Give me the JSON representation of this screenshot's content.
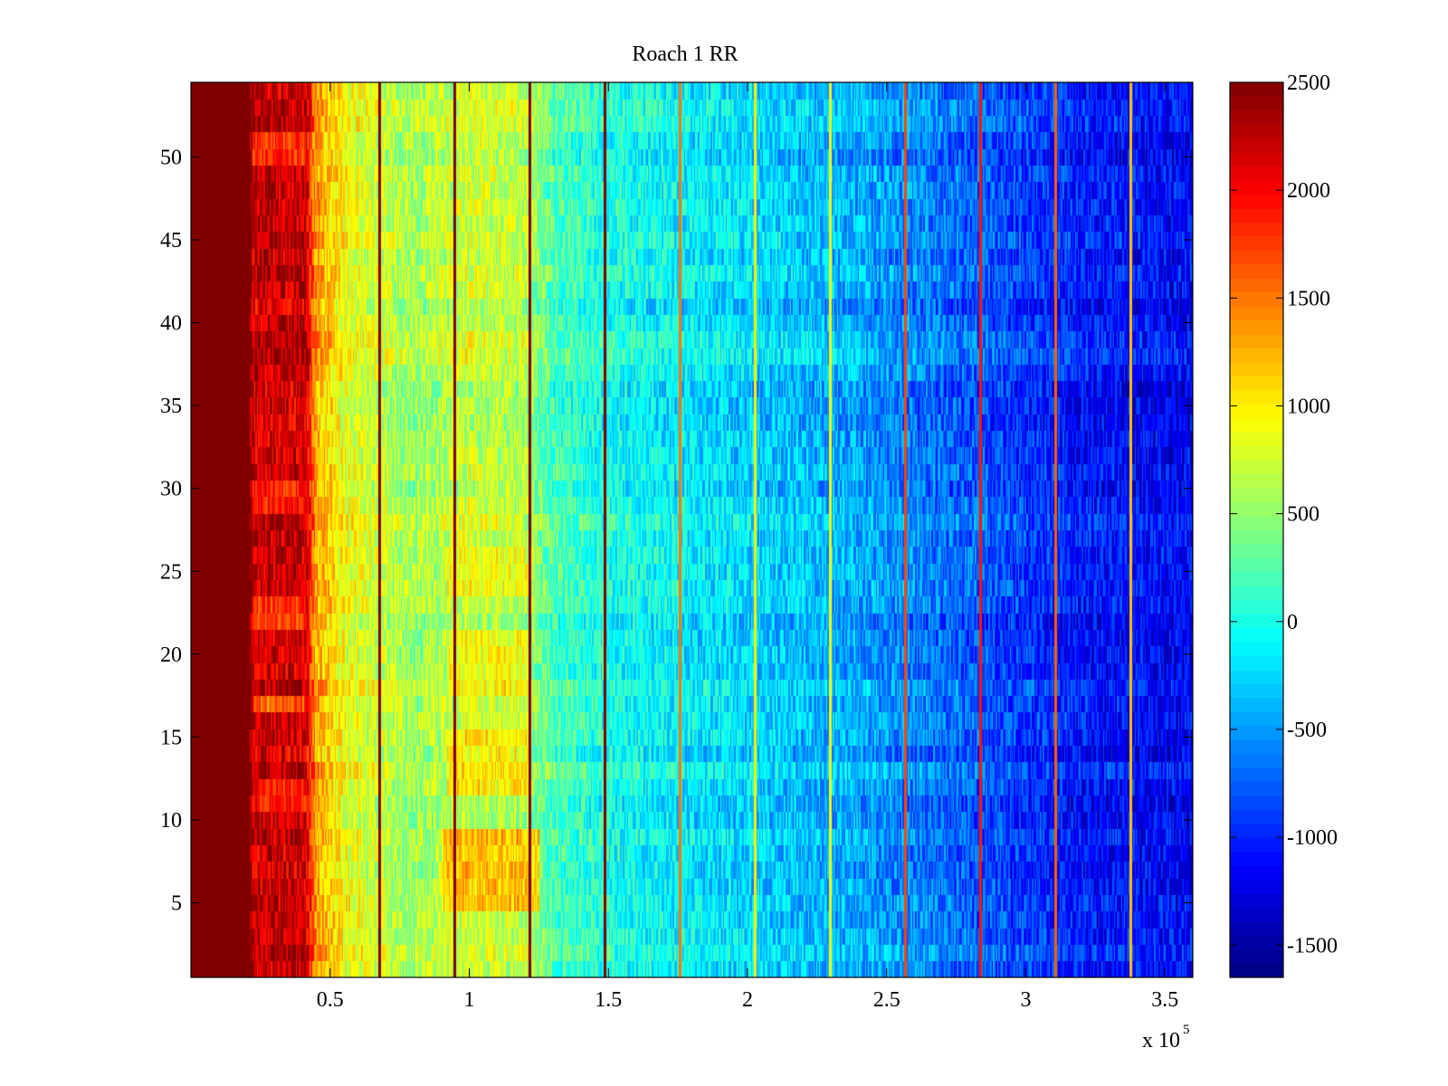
{
  "chart_data": {
    "type": "heatmap",
    "title": "Roach 1 RR",
    "xlabel": "",
    "ylabel": "",
    "x_multiplier_label": "x 10",
    "x_multiplier_exponent": "5",
    "xlim": [
      0,
      360000
    ],
    "ylim": [
      0.5,
      54.5
    ],
    "rows": 54,
    "x_ticks": [
      {
        "value": 50000,
        "label": "0.5"
      },
      {
        "value": 100000,
        "label": "1"
      },
      {
        "value": 150000,
        "label": "1.5"
      },
      {
        "value": 200000,
        "label": "2"
      },
      {
        "value": 250000,
        "label": "2.5"
      },
      {
        "value": 300000,
        "label": "3"
      },
      {
        "value": 350000,
        "label": "3.5"
      }
    ],
    "y_ticks": [
      {
        "value": 5,
        "label": "5"
      },
      {
        "value": 10,
        "label": "10"
      },
      {
        "value": 15,
        "label": "15"
      },
      {
        "value": 20,
        "label": "20"
      },
      {
        "value": 25,
        "label": "25"
      },
      {
        "value": 30,
        "label": "30"
      },
      {
        "value": 35,
        "label": "35"
      },
      {
        "value": 40,
        "label": "40"
      },
      {
        "value": 45,
        "label": "45"
      },
      {
        "value": 50,
        "label": "50"
      }
    ],
    "colorbar": {
      "colormap": "jet",
      "clim": [
        -1650,
        2500
      ],
      "ticks": [
        {
          "value": 2500,
          "label": "2500"
        },
        {
          "value": 2000,
          "label": "2000"
        },
        {
          "value": 1500,
          "label": "1500"
        },
        {
          "value": 1000,
          "label": "1000"
        },
        {
          "value": 500,
          "label": "500"
        },
        {
          "value": 0,
          "label": "0"
        },
        {
          "value": -500,
          "label": "-500"
        },
        {
          "value": -1000,
          "label": "-1000"
        },
        {
          "value": -1500,
          "label": "-1500"
        }
      ]
    },
    "column_profile": [
      {
        "x": 0,
        "value": 2500
      },
      {
        "x": 21000,
        "value": 2500
      },
      {
        "x": 22000,
        "value": 2200
      },
      {
        "x": 41000,
        "value": 2200
      },
      {
        "x": 45000,
        "value": 1300
      },
      {
        "x": 55000,
        "value": 900
      },
      {
        "x": 80000,
        "value": 550
      },
      {
        "x": 100000,
        "value": 750
      },
      {
        "x": 120000,
        "value": 650
      },
      {
        "x": 130000,
        "value": 200
      },
      {
        "x": 150000,
        "value": 0
      },
      {
        "x": 200000,
        "value": -250
      },
      {
        "x": 240000,
        "value": -450
      },
      {
        "x": 280000,
        "value": -750
      },
      {
        "x": 320000,
        "value": -1050
      },
      {
        "x": 360000,
        "value": -1150
      }
    ],
    "vertical_lines": [
      {
        "x": 67500,
        "value": 2500
      },
      {
        "x": 94500,
        "value": 2500
      },
      {
        "x": 121500,
        "value": 2500
      },
      {
        "x": 148500,
        "value": 2500
      },
      {
        "x": 175500,
        "value": 1500
      },
      {
        "x": 202500,
        "value": 1000
      },
      {
        "x": 229500,
        "value": 900
      },
      {
        "x": 256500,
        "value": 1700
      },
      {
        "x": 283500,
        "value": 1900
      },
      {
        "x": 310500,
        "value": 1600
      },
      {
        "x": 337500,
        "value": 1200
      }
    ],
    "bright_rows": [
      {
        "rows": [
          5,
          6,
          7,
          8,
          9
        ],
        "x_range": [
          90000,
          125000
        ],
        "value": 1500
      },
      {
        "rows": [
          12,
          13,
          14,
          15
        ],
        "x_range": [
          92000,
          122000
        ],
        "value": 1200
      },
      {
        "rows": [
          18,
          19,
          20,
          21
        ],
        "x_range": [
          92000,
          122000
        ],
        "value": 1100
      },
      {
        "rows": [
          24,
          25,
          26
        ],
        "x_range": [
          92000,
          122000
        ],
        "value": 1000
      },
      {
        "rows": [
          11,
          12
        ],
        "x_range": [
          22000,
          41000
        ],
        "value": 1700
      },
      {
        "rows": [
          17
        ],
        "x_range": [
          22000,
          41000
        ],
        "value": 1200
      },
      {
        "rows": [
          22,
          23
        ],
        "x_range": [
          22000,
          41000
        ],
        "value": 1500
      },
      {
        "rows": [
          29,
          30
        ],
        "x_range": [
          22000,
          41000
        ],
        "value": 1700
      },
      {
        "rows": [
          50,
          51
        ],
        "x_range": [
          22000,
          41000
        ],
        "value": 1600
      }
    ]
  }
}
